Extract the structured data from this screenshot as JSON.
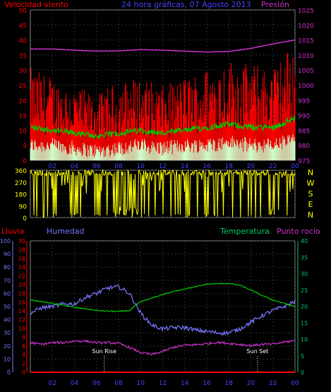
{
  "chart_data": [
    {
      "type": "line",
      "panel": "wind_pressure",
      "title": "24 hora gráficas, 07 Agosto 2013",
      "left_label": "Velocidad viento",
      "right_label": "Presión",
      "x_ticks": [
        "02",
        "04",
        "06",
        "08",
        "10",
        "12",
        "14",
        "16",
        "18",
        "20",
        "22",
        "00"
      ],
      "y_left_ticks": [
        "0",
        "5",
        "10",
        "15",
        "20",
        "25",
        "30",
        "35",
        "40",
        "45",
        "50"
      ],
      "y_left_range": [
        0,
        50
      ],
      "y_right_ticks": [
        "975",
        "980",
        "985",
        "990",
        "995",
        "1000",
        "1005",
        "1010",
        "1015",
        "1020",
        "1025"
      ],
      "y_right_range": [
        975,
        1025
      ],
      "series": [
        {
          "name": "Presión",
          "color": "#cc33cc",
          "x": [
            0,
            2,
            4,
            6,
            8,
            10,
            12,
            14,
            16,
            18,
            20,
            22,
            24
          ],
          "y": [
            1012,
            1012,
            1011.6,
            1011.3,
            1011.4,
            1011.8,
            1011.6,
            1011.3,
            1011,
            1011.2,
            1012.2,
            1013.7,
            1015
          ]
        },
        {
          "name": "gust",
          "color": "#ff0000",
          "x": [
            0,
            2,
            4,
            6,
            8,
            10,
            12,
            14,
            16,
            18,
            20,
            22,
            24
          ],
          "y": [
            20,
            18,
            16,
            14,
            17,
            18,
            16,
            18,
            20,
            22,
            21,
            20,
            26
          ]
        },
        {
          "name": "avg",
          "color": "#00cc00",
          "x": [
            0,
            2,
            4,
            6,
            8,
            10,
            12,
            14,
            16,
            18,
            20,
            22,
            24
          ],
          "y": [
            11,
            10,
            9,
            8,
            9,
            10,
            9,
            10,
            11,
            12,
            11,
            11,
            14
          ]
        },
        {
          "name": "speed",
          "color": "#ccffcc",
          "x": [
            0,
            2,
            4,
            6,
            8,
            10,
            12,
            14,
            16,
            18,
            20,
            22,
            24
          ],
          "y": [
            5,
            5,
            4,
            3,
            4,
            5,
            4,
            5,
            5,
            6,
            5,
            5,
            7
          ]
        }
      ],
      "gridlines": true
    },
    {
      "type": "scatter",
      "panel": "wind_direction",
      "x_ticks": [
        "02",
        "04",
        "06",
        "08",
        "10",
        "12",
        "14",
        "16",
        "18",
        "20",
        "22",
        "00"
      ],
      "y_ticks": [
        "0",
        "90",
        "180",
        "270",
        "360"
      ],
      "y_range": [
        0,
        360
      ],
      "compass_labels": [
        "N",
        "W",
        "S",
        "E",
        "N"
      ],
      "color": "#ffff00",
      "gridlines": true
    },
    {
      "type": "line",
      "panel": "rain_humidity_temp",
      "labels": {
        "rain": "Lluvia",
        "humidity": "Humedad",
        "temperature": "Temperatura",
        "dewpoint": "Punto rocío"
      },
      "x_ticks": [
        "02",
        "04",
        "06",
        "08",
        "10",
        "12",
        "14",
        "16",
        "18",
        "20",
        "22",
        "00"
      ],
      "y_humidity_ticks": [
        "0",
        "10",
        "20",
        "30",
        "40",
        "50",
        "60",
        "70",
        "80",
        "90",
        "100"
      ],
      "y_humidity_range": [
        0,
        100
      ],
      "y_rain_ticks": [
        "0",
        "2",
        "4",
        "6",
        "8",
        "10",
        "12",
        "14",
        "16",
        "18",
        "20",
        "22",
        "24",
        "26",
        "28",
        "30"
      ],
      "y_rain_range": [
        0,
        30
      ],
      "y_temp_ticks": [
        "0",
        "5",
        "10",
        "15",
        "20",
        "25",
        "30",
        "35",
        "40"
      ],
      "y_temp_range": [
        0,
        40
      ],
      "series": [
        {
          "name": "Humedad",
          "color": "#7777ff",
          "axis": "humidity",
          "x": [
            0,
            1,
            2,
            3,
            4,
            5,
            6,
            7,
            8,
            9,
            10,
            11,
            12,
            13,
            14,
            15,
            16,
            17,
            18,
            19,
            20,
            21,
            22,
            23,
            24
          ],
          "y": [
            45,
            49,
            50,
            52,
            52,
            57,
            60,
            64,
            65,
            60,
            45,
            36,
            33,
            34,
            34,
            32,
            31,
            30,
            30,
            33,
            38,
            43,
            47,
            50,
            54
          ]
        },
        {
          "name": "Temperatura",
          "color": "#00cc00",
          "axis": "temp",
          "x": [
            0,
            1,
            2,
            3,
            4,
            5,
            6,
            7,
            8,
            9,
            10,
            11,
            12,
            13,
            14,
            15,
            16,
            17,
            18,
            19,
            20,
            21,
            22,
            23,
            24
          ],
          "y": [
            22,
            21.5,
            21,
            20.4,
            19.7,
            19.3,
            18.8,
            18.6,
            18.5,
            18.8,
            21.5,
            22.5,
            23.7,
            24.6,
            25.4,
            26,
            26.8,
            27,
            27,
            26.5,
            25,
            23.4,
            22,
            21,
            20
          ]
        },
        {
          "name": "Punto rocío",
          "color": "#cc33cc",
          "axis": "temp",
          "x": [
            0,
            1,
            2,
            3,
            4,
            5,
            6,
            7,
            8,
            9,
            10,
            11,
            12,
            13,
            14,
            15,
            16,
            17,
            18,
            19,
            20,
            21,
            22,
            23,
            24
          ],
          "y": [
            9,
            8.5,
            9,
            9,
            9.5,
            9.5,
            9,
            9,
            8.8,
            7.5,
            6,
            5.4,
            6.3,
            7.6,
            8.2,
            8.4,
            8.7,
            9.1,
            8.8,
            8.5,
            8.1,
            8.5,
            8.5,
            9.2,
            9.6
          ]
        },
        {
          "name": "Lluvia",
          "color": "#ff0000",
          "axis": "rain",
          "x": [
            0,
            24
          ],
          "y": [
            0,
            0
          ]
        }
      ],
      "annotations": [
        {
          "text": "Sun Rise",
          "hour": 6.7
        },
        {
          "text": "Sun Set",
          "hour": 20.6
        }
      ],
      "gridlines": true
    }
  ]
}
